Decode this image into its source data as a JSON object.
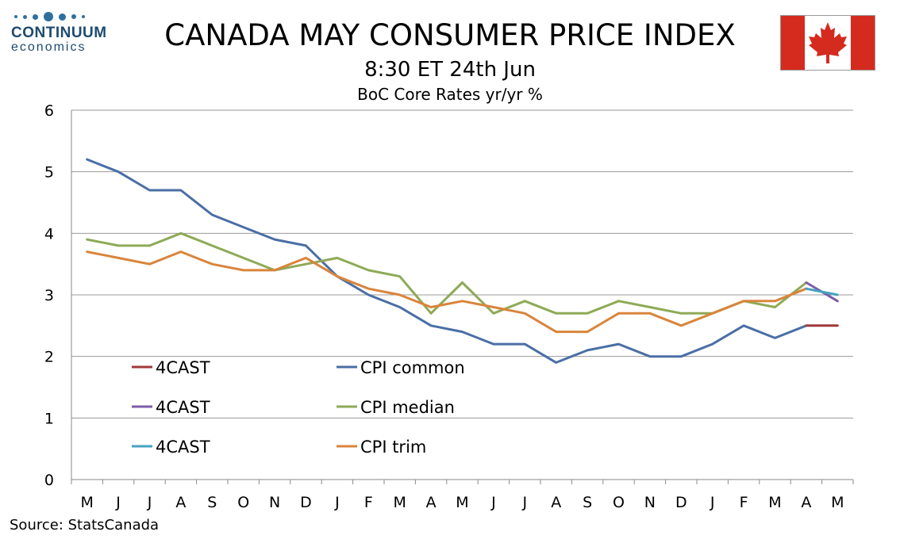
{
  "logo": {
    "name": "CONTINUUM",
    "sub": "economics"
  },
  "header": {
    "title": "CANADA MAY CONSUMER PRICE INDEX",
    "subtitle": "8:30 ET 24th Jun",
    "subtitle2": "BoC Core Rates yr/yr %"
  },
  "flag": {
    "colors": {
      "red": "#d52b1e",
      "white": "#ffffff"
    },
    "icon": "maple-leaf-icon"
  },
  "source": "Source: StatsCanada",
  "chart_data": {
    "type": "line",
    "categories": [
      "M",
      "J",
      "J",
      "A",
      "S",
      "O",
      "N",
      "D",
      "J",
      "F",
      "M",
      "A",
      "M",
      "J",
      "J",
      "A",
      "S",
      "O",
      "N",
      "D",
      "J",
      "F",
      "M",
      "A",
      "M"
    ],
    "ylim": [
      0,
      6
    ],
    "yticks": [
      "0",
      "1",
      "2",
      "3",
      "4",
      "5",
      "6"
    ],
    "grid": true,
    "legend_placement": "bottom-left",
    "series": [
      {
        "name": "4CAST",
        "color": "#a0383a",
        "values": [
          null,
          null,
          null,
          null,
          null,
          null,
          null,
          null,
          null,
          null,
          null,
          null,
          null,
          null,
          null,
          null,
          null,
          null,
          null,
          null,
          null,
          null,
          null,
          2.5,
          2.5
        ]
      },
      {
        "name": "CPI common",
        "color": "#4a6fa5",
        "values": [
          5.2,
          5.0,
          4.7,
          4.7,
          4.3,
          4.1,
          3.9,
          3.8,
          3.3,
          3.0,
          2.8,
          2.5,
          2.4,
          2.2,
          2.2,
          1.9,
          2.1,
          2.2,
          2.0,
          2.0,
          2.2,
          2.5,
          2.3,
          2.5,
          null
        ]
      },
      {
        "name": "4CAST",
        "color": "#7b5ea7",
        "values": [
          null,
          null,
          null,
          null,
          null,
          null,
          null,
          null,
          null,
          null,
          null,
          null,
          null,
          null,
          null,
          null,
          null,
          null,
          null,
          null,
          null,
          null,
          null,
          3.2,
          2.9
        ]
      },
      {
        "name": "CPI median",
        "color": "#8eaa56",
        "values": [
          3.9,
          3.8,
          3.8,
          4.0,
          3.8,
          3.6,
          3.4,
          3.5,
          3.6,
          3.4,
          3.3,
          2.7,
          3.2,
          2.7,
          2.9,
          2.7,
          2.7,
          2.9,
          2.8,
          2.7,
          2.7,
          2.9,
          2.8,
          3.2,
          null
        ]
      },
      {
        "name": "4CAST",
        "color": "#45a3c0",
        "values": [
          null,
          null,
          null,
          null,
          null,
          null,
          null,
          null,
          null,
          null,
          null,
          null,
          null,
          null,
          null,
          null,
          null,
          null,
          null,
          null,
          null,
          null,
          null,
          3.1,
          3.0
        ]
      },
      {
        "name": "CPI trim",
        "color": "#d9853b",
        "values": [
          3.7,
          3.6,
          3.5,
          3.7,
          3.5,
          3.4,
          3.4,
          3.6,
          3.3,
          3.1,
          3.0,
          2.8,
          2.9,
          2.8,
          2.7,
          2.4,
          2.4,
          2.7,
          2.7,
          2.5,
          2.7,
          2.9,
          2.9,
          3.1,
          null
        ]
      }
    ]
  }
}
